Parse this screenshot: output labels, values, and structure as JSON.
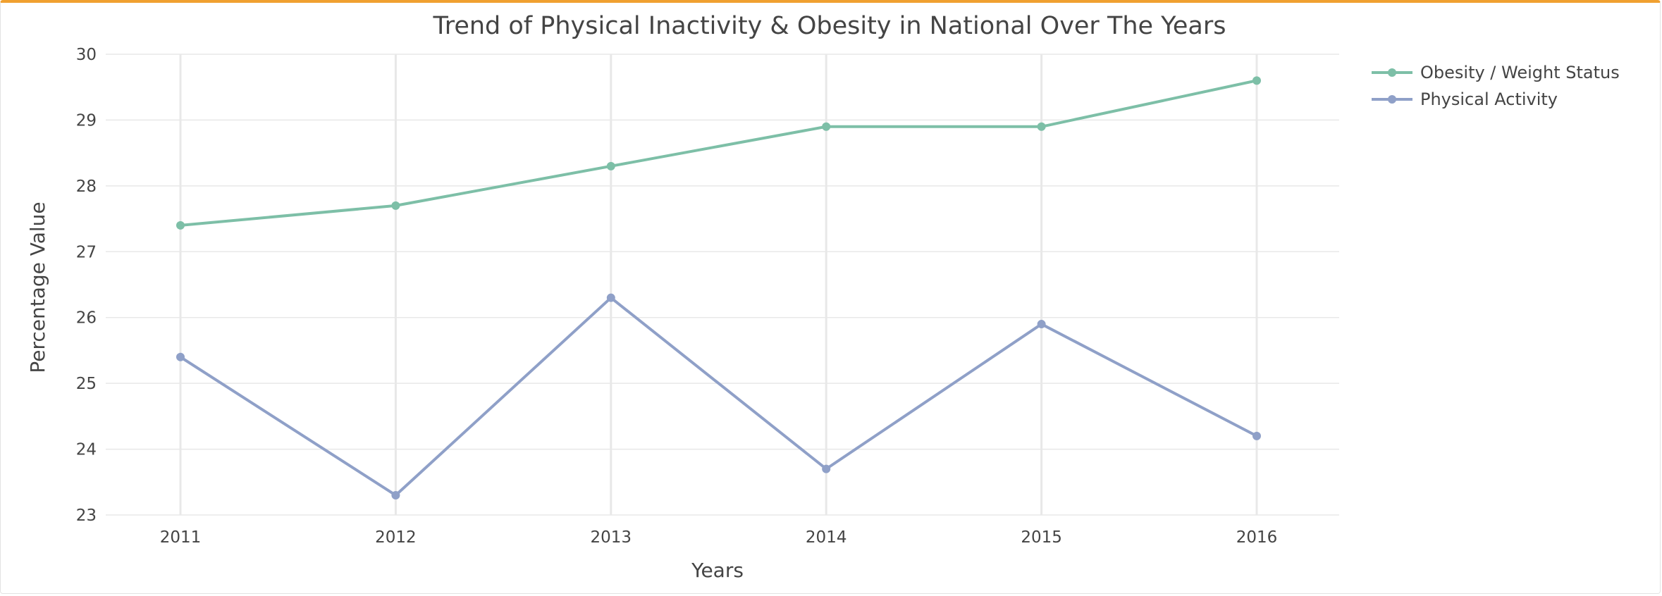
{
  "chart_data": {
    "type": "line",
    "title": "Trend of Physical Inactivity & Obesity in National Over The Years",
    "xlabel": "Years",
    "ylabel": "Percentage Value",
    "x": [
      "2011",
      "2012",
      "2013",
      "2014",
      "2015",
      "2016"
    ],
    "yticks": [
      "23",
      "24",
      "25",
      "26",
      "27",
      "28",
      "29",
      "30"
    ],
    "ylim": [
      23,
      30
    ],
    "grid": true,
    "legend_position": "top-right",
    "series": [
      {
        "name": "Obesity / Weight Status",
        "color": "#7dbfa7",
        "values": [
          27.4,
          27.7,
          28.3,
          28.9,
          28.9,
          29.6
        ]
      },
      {
        "name": "Physical Activity",
        "color": "#8fa0c8",
        "values": [
          25.4,
          23.3,
          26.3,
          23.7,
          25.9,
          24.2
        ]
      }
    ]
  }
}
